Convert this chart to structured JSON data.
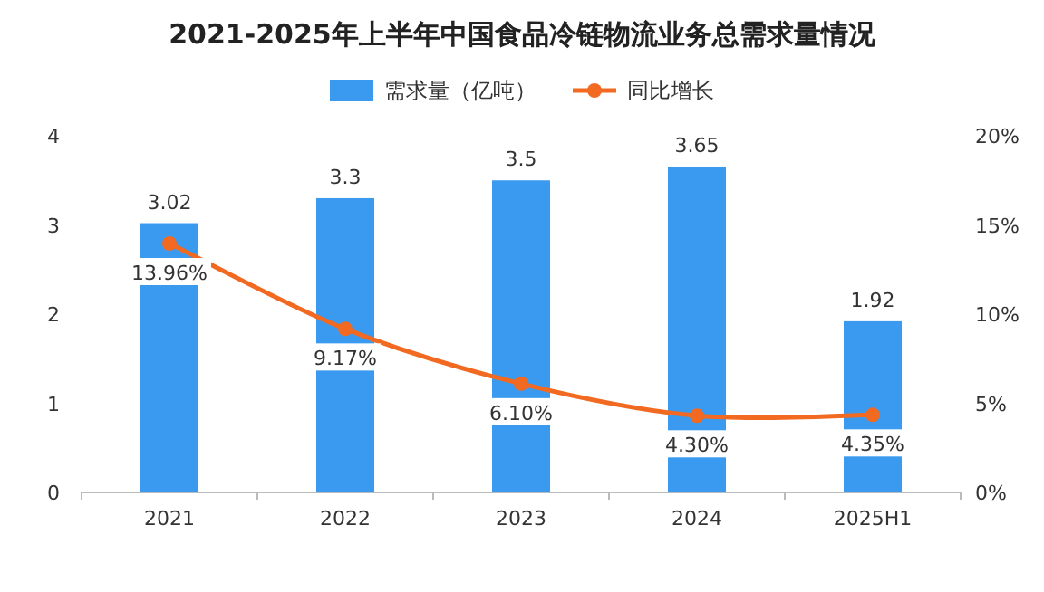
{
  "chart_data": {
    "type": "bar",
    "title": "2021-2025年上半年中国食品冷链物流业务总需求量情况",
    "categories": [
      "2021",
      "2022",
      "2023",
      "2024",
      "2025H1"
    ],
    "series": [
      {
        "name": "需求量（亿吨）",
        "color": "#3a9af0",
        "values": [
          3.02,
          3.3,
          3.5,
          3.65,
          1.92
        ],
        "value_labels": [
          "3.02",
          "3.3",
          "3.5",
          "3.65",
          "1.92"
        ]
      },
      {
        "name": "同比增长",
        "type": "line",
        "axis": "y2",
        "color": "#f26a21",
        "values": [
          13.96,
          9.17,
          6.1,
          4.3,
          4.35
        ],
        "value_labels": [
          "13.96%",
          "9.17%",
          "6.10%",
          "4.30%",
          "4.35%"
        ]
      }
    ],
    "ylim": [
      0,
      4
    ],
    "yticks": [
      0,
      1,
      2,
      3,
      4
    ],
    "y2lim": [
      0,
      20
    ],
    "y2ticks": [
      {
        "value": 0,
        "label": "0%"
      },
      {
        "value": 5,
        "label": "5%"
      },
      {
        "value": 10,
        "label": "10%"
      },
      {
        "value": 15,
        "label": "15%"
      },
      {
        "value": 20,
        "label": "20%"
      }
    ],
    "marker": "circle",
    "legend": "top"
  }
}
